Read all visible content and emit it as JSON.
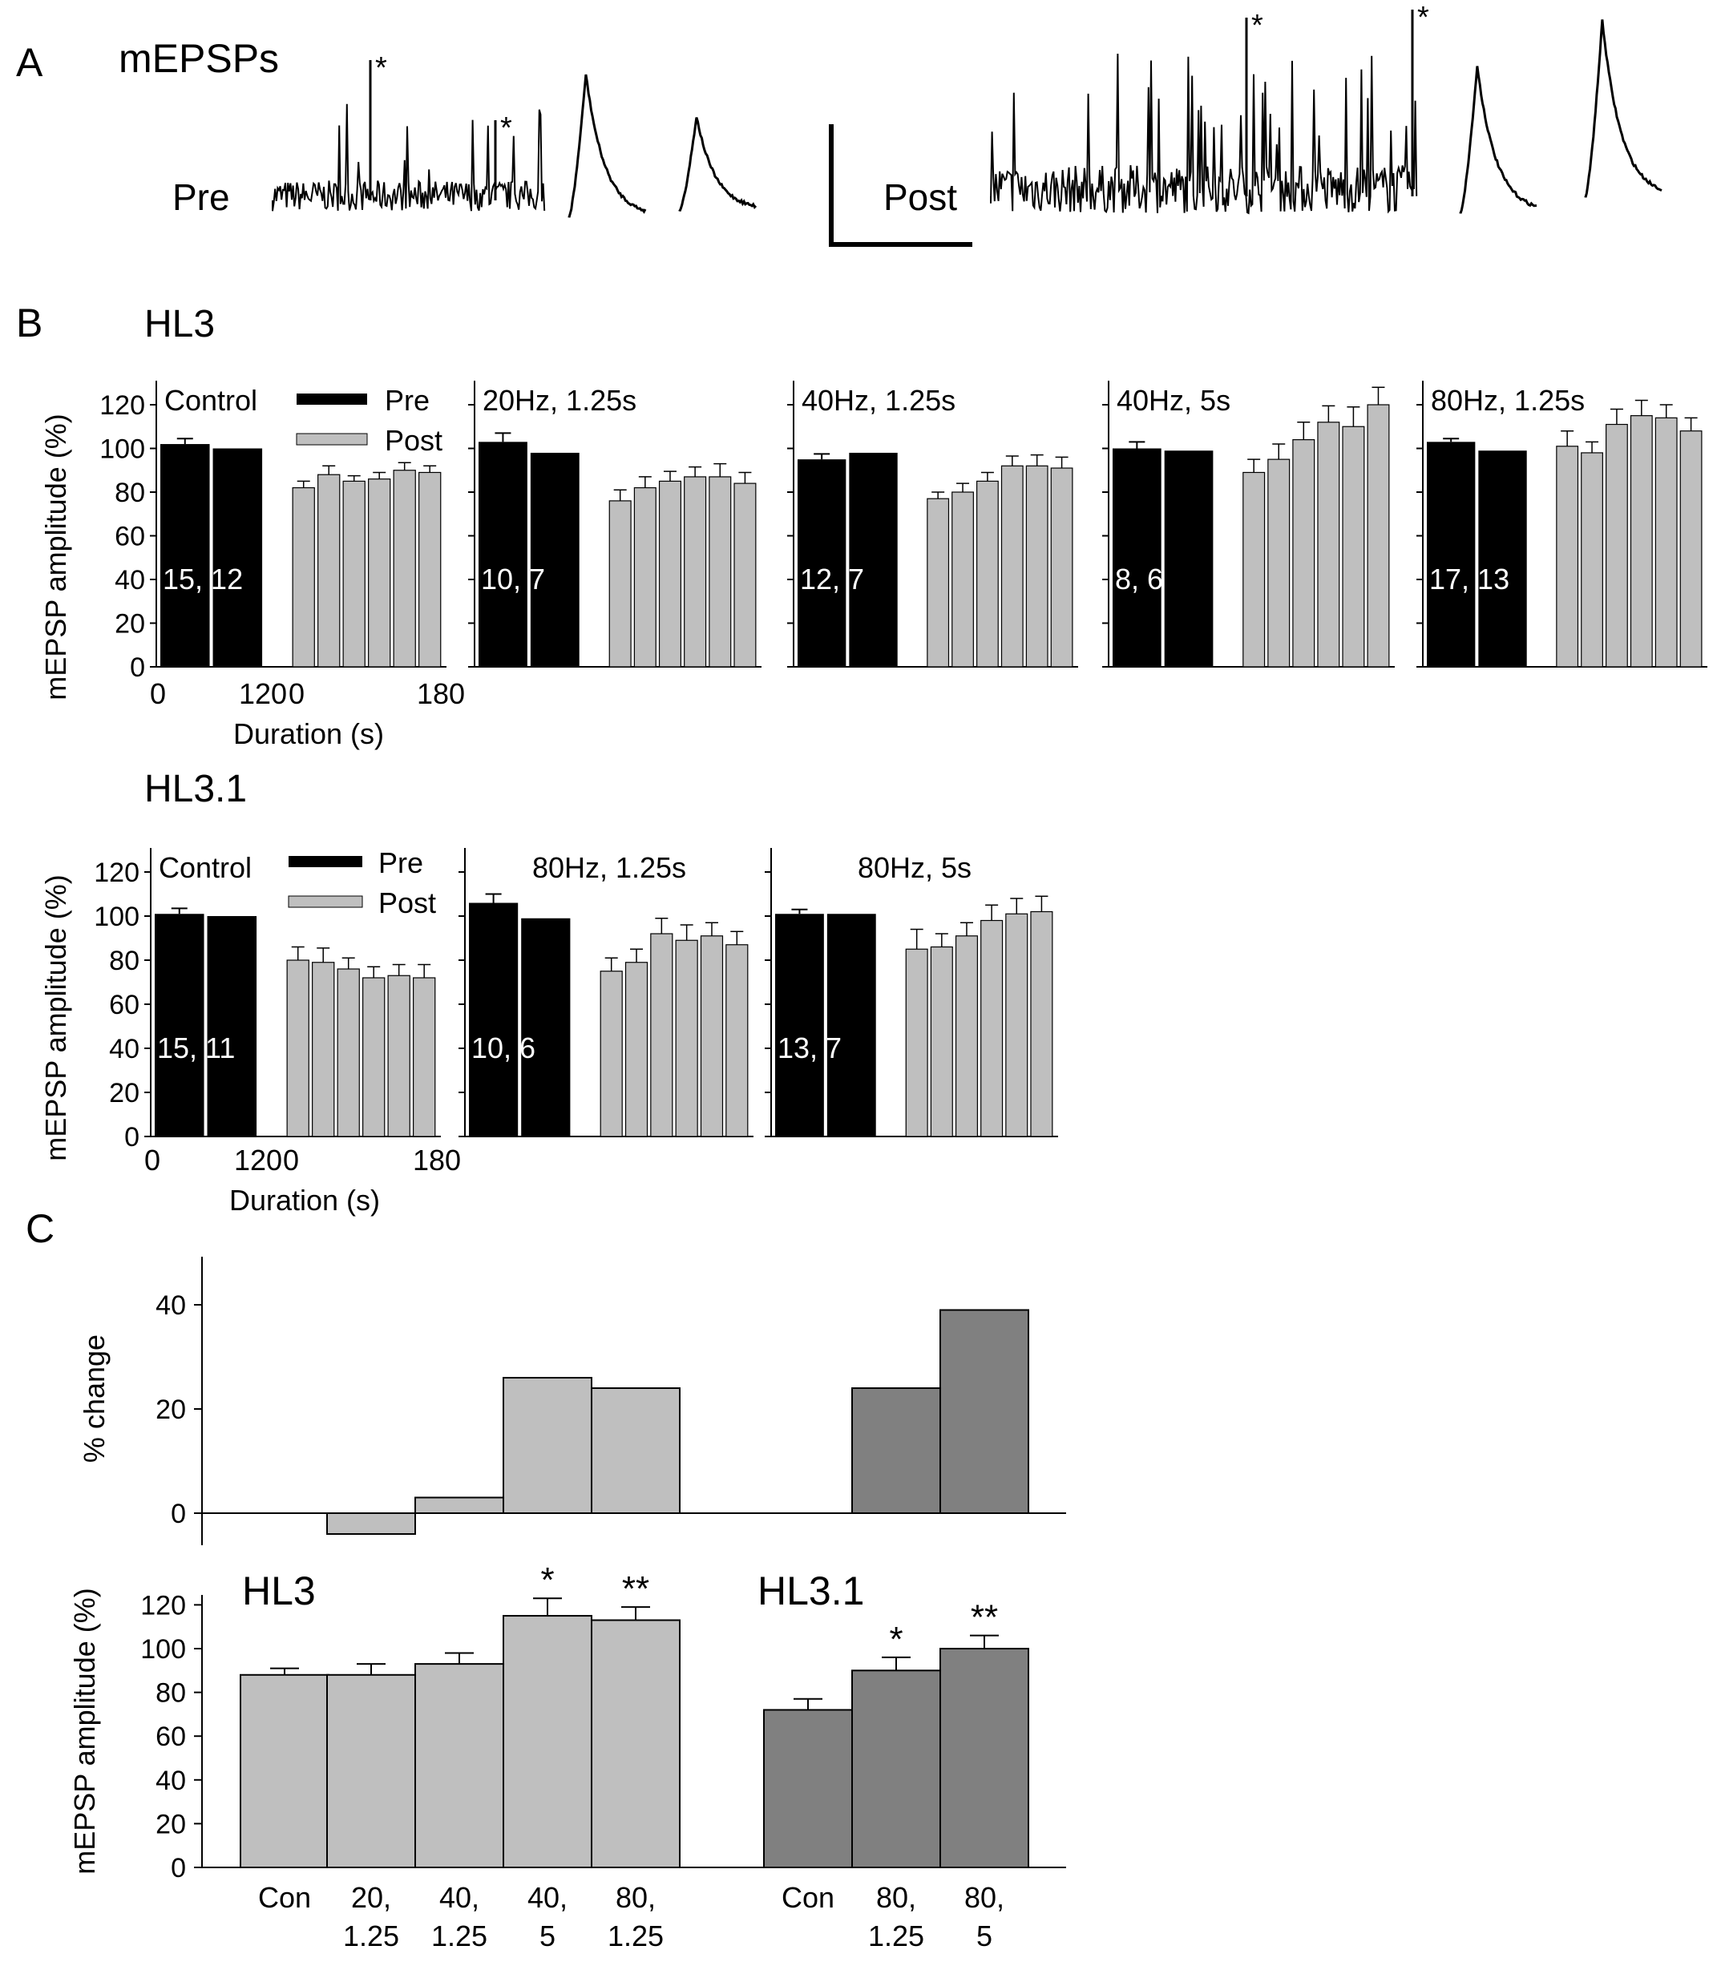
{
  "colors": {
    "pre": "#000000",
    "post": "#bfbfbf",
    "hl3": "#bfbfbf",
    "hl31": "#808080",
    "axis": "#000000",
    "inbar_text": "#ffffff"
  },
  "panelA": {
    "letter": "A",
    "title": "mEPSPs",
    "pre_label": "Pre",
    "post_label": "Post",
    "star": "*"
  },
  "panelB": {
    "letter": "B",
    "ylabel": "mEPSP amplitude (%)",
    "xlabel": "Duration (s)",
    "legend": {
      "pre": "Pre",
      "post": "Post"
    },
    "xticks": [
      "0",
      "120",
      "0",
      "180"
    ],
    "ytick_values": [
      0,
      20,
      40,
      60,
      80,
      100,
      120
    ],
    "ylim": [
      0,
      120
    ],
    "rows": [
      {
        "title": "HL3",
        "panels": [
          {
            "label": "Control",
            "n": "15, 12",
            "pre": [
              102,
              100
            ],
            "pre_err": [
              2.5,
              0
            ],
            "post": [
              82,
              88,
              85,
              86,
              90,
              89
            ],
            "post_err": [
              3,
              4,
              2.5,
              3,
              3.5,
              3
            ]
          },
          {
            "label": "20Hz, 1.25s",
            "n": "10, 7",
            "pre": [
              103,
              98
            ],
            "pre_err": [
              4,
              0
            ],
            "post": [
              76,
              82,
              85,
              87,
              87,
              84
            ],
            "post_err": [
              5,
              5,
              4.5,
              4.5,
              6,
              5
            ]
          },
          {
            "label": "40Hz, 1.25s",
            "n": "12, 7",
            "pre": [
              95,
              98
            ],
            "pre_err": [
              2.5,
              0
            ],
            "post": [
              77,
              80,
              85,
              92,
              92,
              91
            ],
            "post_err": [
              3,
              4,
              4,
              4.5,
              5,
              5
            ]
          },
          {
            "label": "40Hz, 5s",
            "n": "8, 6",
            "pre": [
              100,
              99
            ],
            "pre_err": [
              3,
              0
            ],
            "post": [
              89,
              95,
              104,
              112,
              110,
              120
            ],
            "post_err": [
              6,
              7,
              8,
              7.5,
              9,
              8
            ]
          },
          {
            "label": "80Hz, 1.25s",
            "n": "17, 13",
            "pre": [
              103,
              99
            ],
            "pre_err": [
              1.5,
              0
            ],
            "post": [
              101,
              98,
              111,
              115,
              114,
              108
            ],
            "post_err": [
              7,
              5,
              7,
              7,
              6,
              6
            ]
          }
        ]
      },
      {
        "title": "HL3.1",
        "panels": [
          {
            "label": "Control",
            "n": "15, 11",
            "pre": [
              101,
              100
            ],
            "pre_err": [
              2.5,
              0
            ],
            "post": [
              80,
              79,
              76,
              72,
              73,
              72
            ],
            "post_err": [
              6,
              6.5,
              5,
              5,
              5,
              6
            ]
          },
          {
            "label": "80Hz, 1.25s",
            "n": "10, 6",
            "pre": [
              106,
              99
            ],
            "pre_err": [
              4,
              0
            ],
            "post": [
              75,
              79,
              92,
              89,
              91,
              87
            ],
            "post_err": [
              6,
              6,
              7,
              7,
              6,
              6
            ]
          },
          {
            "label": "80Hz, 5s",
            "n": "13, 7",
            "pre": [
              101,
              101
            ],
            "pre_err": [
              2,
              0
            ],
            "post": [
              85,
              86,
              91,
              98,
              101,
              102
            ],
            "post_err": [
              9,
              6,
              6,
              7,
              7,
              7
            ]
          }
        ]
      }
    ]
  },
  "panelC": {
    "letter": "C",
    "top_ylabel": "% change",
    "top_yticks": [
      0,
      20,
      40
    ],
    "bottom_ylabel": "mEPSP amplitude (%)",
    "bottom_yticks": [
      0,
      20,
      40,
      60,
      80,
      100,
      120
    ],
    "group_labels": [
      "HL3",
      "HL3.1"
    ],
    "categories": [
      {
        "line1": "Con",
        "line2": "",
        "group": "HL3"
      },
      {
        "line1": "20,",
        "line2": "1.25",
        "group": "HL3"
      },
      {
        "line1": "40,",
        "line2": "1.25",
        "group": "HL3"
      },
      {
        "line1": "40,",
        "line2": "5",
        "group": "HL3"
      },
      {
        "line1": "80,",
        "line2": "1.25",
        "group": "HL3"
      },
      {
        "line1": "Con",
        "line2": "",
        "group": "HL3.1"
      },
      {
        "line1": "80,",
        "line2": "1.25",
        "group": "HL3.1"
      },
      {
        "line1": "80,",
        "line2": "5",
        "group": "HL3.1"
      }
    ]
  },
  "chart_data": [
    {
      "type": "bar",
      "panel": "B",
      "series": [
        {
          "name": "Pre"
        },
        {
          "name": "Post"
        }
      ],
      "xlabel": "Duration (s)",
      "ylabel": "mEPSP amplitude (%)",
      "ylim": [
        0,
        120
      ],
      "grid": false,
      "legend": "top-left"
    },
    {
      "type": "bar",
      "panel": "C-top",
      "ylabel": "% change",
      "values": [
        0,
        -4,
        3,
        26,
        24,
        null,
        24,
        39
      ],
      "ylim": [
        -5,
        50
      ],
      "grid": false
    },
    {
      "type": "bar",
      "panel": "C-bottom",
      "ylabel": "mEPSP amplitude (%)",
      "values": [
        88,
        88,
        93,
        115,
        113,
        72,
        90,
        100
      ],
      "errors": [
        3,
        5,
        5,
        8,
        6,
        5,
        6,
        6
      ],
      "significance": [
        "",
        "",
        "",
        "*",
        "**",
        "",
        "*",
        "**"
      ],
      "ylim": [
        0,
        120
      ],
      "grid": false
    }
  ]
}
